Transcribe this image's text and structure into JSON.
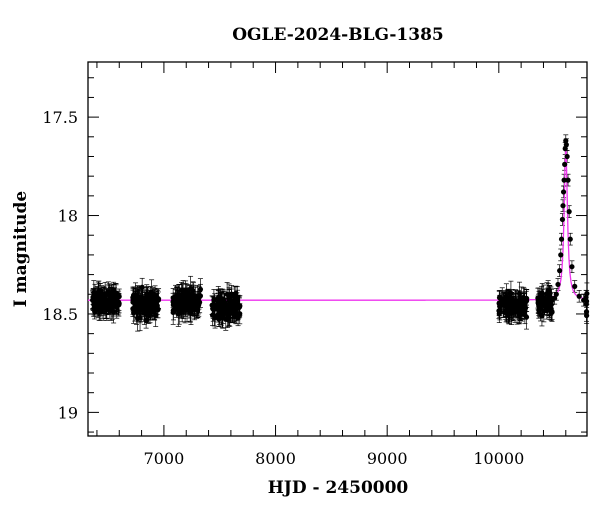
{
  "chart_data": {
    "type": "scatter",
    "title": "OGLE-2024-BLG-1385",
    "xlabel": "HJD - 2450000",
    "ylabel": "I magnitude",
    "xlim": [
      6320,
      10790
    ],
    "ylim": [
      19.12,
      17.22
    ],
    "y_inverted": true,
    "x_ticks": [
      7000,
      8000,
      9000,
      10000
    ],
    "y_ticks": [
      17.5,
      18,
      18.5,
      19
    ],
    "y_tick_labels": [
      "17.5",
      "18",
      "18.5",
      "19"
    ],
    "colors": {
      "points": "#000000",
      "model": "#ee33ee"
    },
    "baseline_magnitude": 18.43,
    "observing_seasons": [
      {
        "start": 6360,
        "end": 6600,
        "mean_mag": 18.44
      },
      {
        "start": 6720,
        "end": 6960,
        "mean_mag": 18.45
      },
      {
        "start": 7080,
        "end": 7330,
        "mean_mag": 18.44
      },
      {
        "start": 7430,
        "end": 7680,
        "mean_mag": 18.46
      },
      {
        "start": 10000,
        "end": 10250,
        "mean_mag": 18.46
      },
      {
        "start": 10350,
        "end": 10790,
        "mean_mag": 18.44
      }
    ],
    "event_points": [
      {
        "x": 10500,
        "y": 18.42
      },
      {
        "x": 10515,
        "y": 18.4
      },
      {
        "x": 10530,
        "y": 18.35
      },
      {
        "x": 10545,
        "y": 18.28
      },
      {
        "x": 10555,
        "y": 18.2
      },
      {
        "x": 10562,
        "y": 18.12
      },
      {
        "x": 10570,
        "y": 18.02
      },
      {
        "x": 10575,
        "y": 17.95
      },
      {
        "x": 10580,
        "y": 17.88
      },
      {
        "x": 10585,
        "y": 17.82
      },
      {
        "x": 10590,
        "y": 17.74
      },
      {
        "x": 10595,
        "y": 17.66
      },
      {
        "x": 10600,
        "y": 17.62
      },
      {
        "x": 10605,
        "y": 17.64
      },
      {
        "x": 10612,
        "y": 17.7
      },
      {
        "x": 10620,
        "y": 17.82
      },
      {
        "x": 10630,
        "y": 17.98
      },
      {
        "x": 10640,
        "y": 18.12
      },
      {
        "x": 10655,
        "y": 18.26
      },
      {
        "x": 10680,
        "y": 18.36
      },
      {
        "x": 10720,
        "y": 18.41
      },
      {
        "x": 10760,
        "y": 18.43
      }
    ],
    "model_curve": {
      "name": "",
      "peak_x": 10600,
      "peak_mag": 17.63,
      "width_days": 17
    }
  }
}
